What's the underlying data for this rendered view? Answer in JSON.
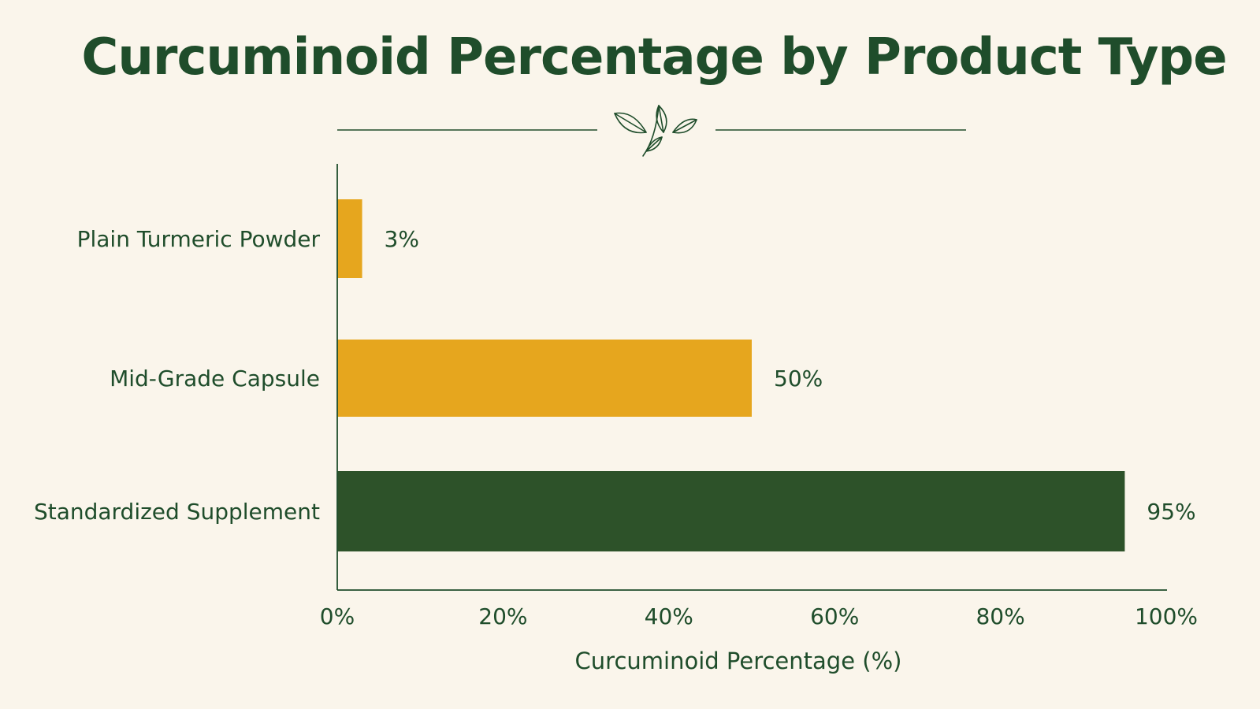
{
  "chart_data": {
    "type": "bar",
    "orientation": "horizontal",
    "title": "Curcuminoid Percentage by Product Type",
    "xlabel": "Curcuminoid Percentage (%)",
    "ylabel": "",
    "categories": [
      "Plain Turmeric Powder",
      "Mid-Grade Capsule",
      "Standardized Supplement"
    ],
    "values": [
      3,
      50,
      95
    ],
    "value_labels": [
      "3%",
      "50%",
      "95%"
    ],
    "bar_colors": [
      "#E6A61E",
      "#E6A61E",
      "#2D5229"
    ],
    "xlim": [
      0,
      100
    ],
    "x_ticks": [
      0,
      20,
      40,
      60,
      80,
      100
    ],
    "x_tick_labels": [
      "0%",
      "20%",
      "40%",
      "60%",
      "80%",
      "100%"
    ],
    "grid": false,
    "legend": "none"
  },
  "decoration": {
    "icon": "leaf-sprig-icon",
    "accent_color": "#1F4D2B",
    "background_color": "#FAF5EB"
  }
}
